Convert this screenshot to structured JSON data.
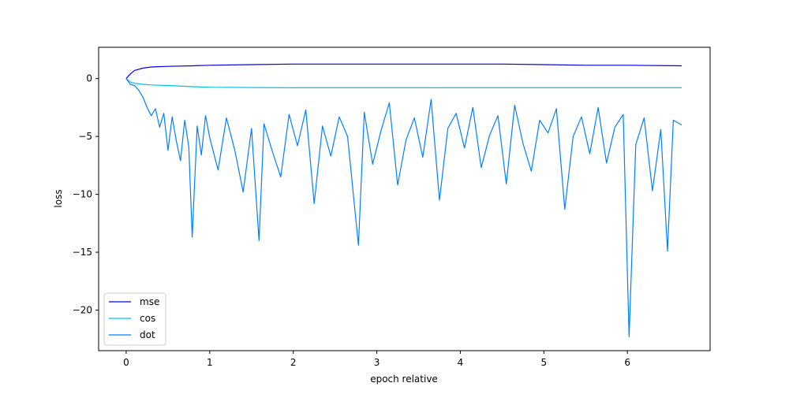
{
  "chart_data": {
    "type": "line",
    "xlabel": "epoch relative",
    "ylabel": "loss",
    "xlim": [
      -0.33,
      6.99
    ],
    "ylim": [
      -23.5,
      2.7
    ],
    "x_ticks": [
      0,
      1,
      2,
      3,
      4,
      5,
      6
    ],
    "x_tick_labels": [
      "0",
      "1",
      "2",
      "3",
      "4",
      "5",
      "6"
    ],
    "y_ticks": [
      0,
      -5,
      -10,
      -15,
      -20
    ],
    "y_tick_labels": [
      "0",
      "−5",
      "−10",
      "−15",
      "−20"
    ],
    "grid": false,
    "legend_position": "lower-left",
    "series": [
      {
        "name": "mse",
        "color": "#0000e0",
        "x": [
          0,
          0.05,
          0.1,
          0.2,
          0.3,
          0.5,
          0.8,
          1.0,
          1.5,
          2.0,
          2.5,
          3.0,
          3.5,
          4.0,
          4.5,
          5.0,
          5.5,
          6.0,
          6.65
        ],
        "values": [
          0,
          0.4,
          0.7,
          0.9,
          1.0,
          1.05,
          1.1,
          1.15,
          1.2,
          1.25,
          1.25,
          1.25,
          1.25,
          1.25,
          1.25,
          1.2,
          1.15,
          1.15,
          1.1
        ]
      },
      {
        "name": "cos",
        "color": "#00c0f0",
        "x": [
          0,
          0.05,
          0.1,
          0.2,
          0.3,
          0.5,
          0.8,
          1.0,
          1.5,
          2.0,
          2.5,
          3.0,
          3.5,
          4.0,
          4.5,
          5.0,
          5.5,
          6.0,
          6.65
        ],
        "values": [
          0,
          -0.3,
          -0.4,
          -0.5,
          -0.55,
          -0.6,
          -0.7,
          -0.75,
          -0.78,
          -0.8,
          -0.8,
          -0.8,
          -0.8,
          -0.8,
          -0.8,
          -0.8,
          -0.8,
          -0.8,
          -0.8
        ]
      },
      {
        "name": "dot",
        "color": "#0080ff",
        "x": [
          0,
          0.05,
          0.1,
          0.15,
          0.2,
          0.25,
          0.3,
          0.35,
          0.4,
          0.45,
          0.5,
          0.55,
          0.6,
          0.65,
          0.7,
          0.75,
          0.79,
          0.85,
          0.9,
          0.95,
          1.0,
          1.1,
          1.2,
          1.3,
          1.4,
          1.5,
          1.59,
          1.65,
          1.75,
          1.85,
          1.95,
          2.05,
          2.15,
          2.25,
          2.35,
          2.45,
          2.55,
          2.65,
          2.78,
          2.85,
          2.95,
          3.05,
          3.15,
          3.25,
          3.35,
          3.45,
          3.55,
          3.65,
          3.75,
          3.85,
          3.95,
          4.05,
          4.15,
          4.25,
          4.35,
          4.45,
          4.55,
          4.65,
          4.75,
          4.85,
          4.95,
          5.05,
          5.15,
          5.25,
          5.35,
          5.45,
          5.55,
          5.65,
          5.75,
          5.85,
          5.95,
          6.02,
          6.1,
          6.2,
          6.3,
          6.4,
          6.48,
          6.55,
          6.65
        ],
        "values": [
          0,
          -0.5,
          -0.6,
          -1.0,
          -1.6,
          -2.5,
          -3.2,
          -2.6,
          -4.2,
          -3.0,
          -6.2,
          -3.3,
          -5.4,
          -7.1,
          -3.6,
          -5.9,
          -13.7,
          -4.1,
          -6.6,
          -3.2,
          -5.1,
          -7.9,
          -3.4,
          -6.2,
          -9.8,
          -4.3,
          -14.0,
          -3.9,
          -6.3,
          -8.5,
          -3.1,
          -5.8,
          -2.7,
          -10.8,
          -4.1,
          -6.7,
          -3.3,
          -5.0,
          -14.4,
          -2.9,
          -7.4,
          -4.5,
          -2.1,
          -9.2,
          -5.3,
          -3.4,
          -6.8,
          -1.8,
          -10.5,
          -4.3,
          -3.0,
          -6.0,
          -2.5,
          -7.7,
          -4.9,
          -3.2,
          -9.1,
          -2.3,
          -5.6,
          -8.0,
          -3.6,
          -4.7,
          -2.6,
          -11.3,
          -5.0,
          -3.3,
          -6.5,
          -2.5,
          -7.3,
          -4.2,
          -3.1,
          -22.3,
          -5.7,
          -3.4,
          -9.7,
          -4.4,
          -14.9,
          -3.6,
          -4.0
        ]
      }
    ]
  }
}
